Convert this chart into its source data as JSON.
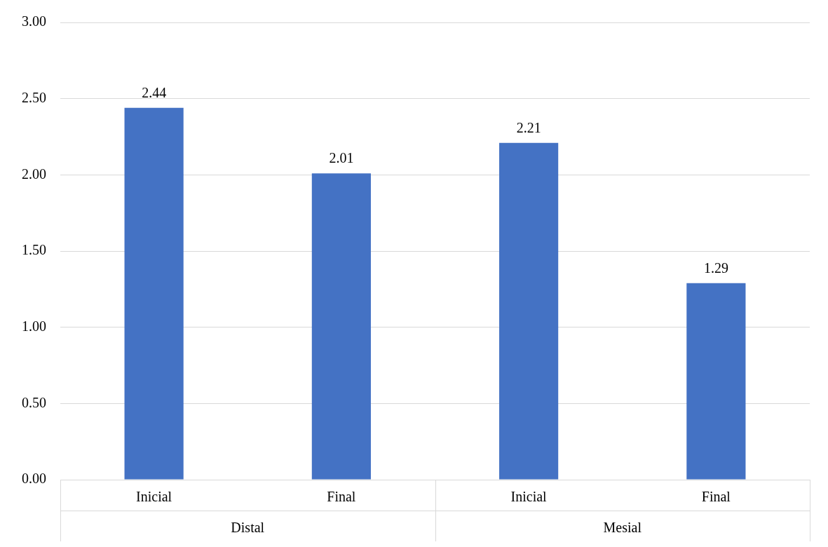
{
  "chart_data": {
    "type": "bar",
    "categories": [
      "Inicial",
      "Final",
      "Inicial",
      "Final"
    ],
    "values": [
      2.44,
      2.01,
      2.21,
      1.29
    ],
    "color": "#4472c4",
    "ylim": [
      0,
      3
    ],
    "yticks": [
      {
        "value": 0,
        "label": "0.00"
      },
      {
        "value": 0.5,
        "label": "0.50"
      },
      {
        "value": 1,
        "label": "1.00"
      },
      {
        "value": 1.5,
        "label": "1.50"
      },
      {
        "value": 2,
        "label": "2.00"
      },
      {
        "value": 2.5,
        "label": "2.50"
      },
      {
        "value": 3,
        "label": "3.00"
      }
    ],
    "grid": "y",
    "data_labels": true,
    "legend": false,
    "annotations": [
      "Distal",
      "Mesial"
    ]
  }
}
